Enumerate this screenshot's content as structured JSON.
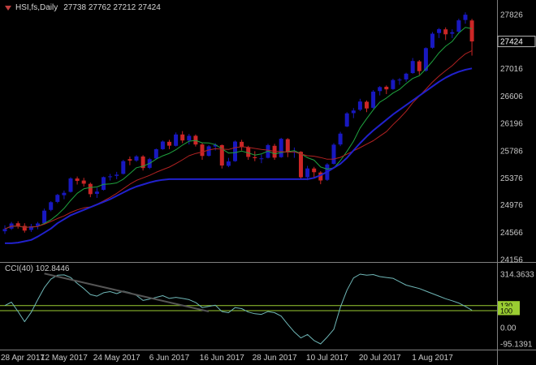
{
  "header": {
    "symbol": "HSI,fs,Daily",
    "ohlc": "27738 27762 27212 27424"
  },
  "colors": {
    "background": "#000000",
    "bull": "#1818C0",
    "bear": "#CC2626",
    "ma_fast": "#1FA33F",
    "ma_slow": "#B22222",
    "step_line": "#2121CC",
    "cci_line": "#6FB7B7",
    "level_line": "#9ACD32",
    "axis_text": "#C8C8C8",
    "trendline": "#555555",
    "separator": "#808080",
    "price_tag_text": "#FFFFFF"
  },
  "chart_data": {
    "type": "candlestick",
    "symbol": "HSI,fs,Daily",
    "timeframe": "Daily",
    "last_bar_ohlc": {
      "open": 27738,
      "high": 27762,
      "low": 27212,
      "close": 27424
    },
    "price_axis": {
      "max": 27826,
      "min": 24156,
      "current_price": 27424,
      "gridlines": [
        27826,
        27416,
        27016,
        26606,
        26196,
        25786,
        25376,
        24976,
        24566,
        24156
      ]
    },
    "x_axis": {
      "labels": [
        {
          "bar": 0,
          "label": "28 Apr 2017"
        },
        {
          "bar": 9,
          "label": "12 May 2017"
        },
        {
          "bar": 17,
          "label": "24 May 2017"
        },
        {
          "bar": 25,
          "label": "6 Jun 2017"
        },
        {
          "bar": 33,
          "label": "16 Jun 2017"
        },
        {
          "bar": 41,
          "label": "28 Jun 2017"
        },
        {
          "bar": 49,
          "label": "10 Jul 2017"
        },
        {
          "bar": 57,
          "label": "20 Jul 2017"
        },
        {
          "bar": 65,
          "label": "1 Aug 2017"
        }
      ]
    },
    "bars": [
      [
        24580,
        24670,
        24540,
        24615
      ],
      [
        24620,
        24720,
        24600,
        24696
      ],
      [
        24700,
        24730,
        24620,
        24660
      ],
      [
        24660,
        24700,
        24560,
        24590
      ],
      [
        24600,
        24690,
        24570,
        24655
      ],
      [
        24660,
        24720,
        24610,
        24697
      ],
      [
        24700,
        24920,
        24690,
        24889
      ],
      [
        24900,
        25030,
        24880,
        25015
      ],
      [
        25020,
        25140,
        25000,
        25125
      ],
      [
        25120,
        25190,
        25060,
        25156
      ],
      [
        25170,
        25390,
        25160,
        25371
      ],
      [
        25370,
        25400,
        25280,
        25335
      ],
      [
        25340,
        25380,
        25250,
        25293
      ],
      [
        25290,
        25310,
        25090,
        25136
      ],
      [
        25140,
        25230,
        25080,
        25174
      ],
      [
        25200,
        25400,
        25190,
        25391
      ],
      [
        25390,
        25440,
        25340,
        25403
      ],
      [
        25410,
        25470,
        25360,
        25428
      ],
      [
        25440,
        25650,
        25430,
        25630
      ],
      [
        25660,
        25700,
        25570,
        25639
      ],
      [
        25640,
        25720,
        25620,
        25701
      ],
      [
        25700,
        25720,
        25490,
        25527
      ],
      [
        25530,
        25680,
        25510,
        25660
      ],
      [
        25670,
        25820,
        25660,
        25809
      ],
      [
        25810,
        25940,
        25800,
        25924
      ],
      [
        25920,
        25950,
        25810,
        25862
      ],
      [
        25860,
        26060,
        25850,
        26030
      ],
      [
        26030,
        26080,
        25900,
        25940
      ],
      [
        25940,
        26040,
        25880,
        26010
      ],
      [
        26010,
        26030,
        25850,
        25880
      ],
      [
        25880,
        25900,
        25650,
        25708
      ],
      [
        25710,
        25870,
        25700,
        25852
      ],
      [
        25850,
        25900,
        25790,
        25875
      ],
      [
        25870,
        25880,
        25520,
        25565
      ],
      [
        25560,
        25680,
        25540,
        25626
      ],
      [
        25630,
        25940,
        25620,
        25924
      ],
      [
        25920,
        25950,
        25790,
        25843
      ],
      [
        25840,
        25860,
        25650,
        25694
      ],
      [
        25690,
        25780,
        25630,
        25675
      ],
      [
        25670,
        25730,
        25600,
        25672
      ],
      [
        25680,
        25890,
        25670,
        25871
      ],
      [
        25860,
        25890,
        25650,
        25683
      ],
      [
        25690,
        25980,
        25680,
        25965
      ],
      [
        25960,
        25975,
        25690,
        25764
      ],
      [
        25770,
        25835,
        25680,
        25772
      ],
      [
        25770,
        25780,
        25355,
        25389
      ],
      [
        25390,
        25560,
        25345,
        25521
      ],
      [
        25520,
        25545,
        25375,
        25465
      ],
      [
        25460,
        25480,
        25285,
        25341
      ],
      [
        25350,
        25600,
        25335,
        25581
      ],
      [
        25590,
        25900,
        25580,
        25877
      ],
      [
        25880,
        26070,
        25855,
        26043
      ],
      [
        26150,
        26365,
        26140,
        26346
      ],
      [
        26350,
        26425,
        26275,
        26389
      ],
      [
        26400,
        26565,
        26380,
        26524
      ],
      [
        26520,
        26540,
        26365,
        26420
      ],
      [
        26430,
        26695,
        26415,
        26672
      ],
      [
        26680,
        26755,
        26615,
        26740
      ],
      [
        26745,
        26765,
        26635,
        26706
      ],
      [
        26710,
        26865,
        26700,
        26846
      ],
      [
        26850,
        26875,
        26775,
        26852
      ],
      [
        26855,
        26955,
        26820,
        26941
      ],
      [
        26950,
        27175,
        26940,
        27131
      ],
      [
        27125,
        27145,
        26925,
        26979
      ],
      [
        26985,
        27335,
        26970,
        27324
      ],
      [
        27330,
        27565,
        27315,
        27540
      ],
      [
        27550,
        27625,
        27475,
        27607
      ],
      [
        27605,
        27635,
        27445,
        27531
      ],
      [
        27540,
        27605,
        27475,
        27562
      ],
      [
        27570,
        27765,
        27555,
        27740
      ],
      [
        27745,
        27860,
        27690,
        27824
      ],
      [
        27738,
        27762,
        27212,
        27424
      ]
    ],
    "overlays": {
      "ma_fast_period": 6,
      "ma_slow_period": 14,
      "step_line": [
        24400,
        24400,
        24410,
        24430,
        24450,
        24500,
        24560,
        24620,
        24700,
        24760,
        24820,
        24860,
        24900,
        24940,
        24980,
        25020,
        25060,
        25110,
        25160,
        25210,
        25250,
        25280,
        25310,
        25335,
        25350,
        25360,
        25360,
        25360,
        25360,
        25360,
        25360,
        25360,
        25360,
        25360,
        25360,
        25360,
        25360,
        25360,
        25360,
        25360,
        25360,
        25360,
        25360,
        25360,
        25360,
        25360,
        25360,
        25380,
        25420,
        25470,
        25530,
        25590,
        25680,
        25790,
        25900,
        26000,
        26090,
        26170,
        26250,
        26330,
        26400,
        26470,
        26540,
        26610,
        26680,
        26750,
        26820,
        26880,
        26930,
        26970,
        27000,
        27020
      ]
    },
    "indicator": {
      "name": "CCI(40)",
      "current_value": 102.8446,
      "title": "CCI(40) 102.8446",
      "values": [
        130,
        150,
        95,
        35,
        90,
        165,
        235,
        285,
        308,
        310,
        295,
        260,
        230,
        195,
        185,
        205,
        212,
        200,
        215,
        205,
        190,
        160,
        168,
        178,
        188,
        172,
        178,
        172,
        165,
        148,
        118,
        125,
        132,
        95,
        88,
        118,
        112,
        92,
        82,
        78,
        95,
        88,
        68,
        20,
        -25,
        -60,
        -40,
        -75,
        -95.14,
        -55,
        -10,
        120,
        220,
        292,
        314.36,
        308,
        312,
        300,
        295,
        290,
        270,
        250,
        240,
        230,
        215,
        200,
        185,
        170,
        158,
        145,
        125,
        102.84
      ],
      "levels": [
        {
          "value": 130,
          "label": "130"
        },
        {
          "value": 100,
          "label": "100"
        }
      ],
      "axis_labels": [
        {
          "value": 314.3633,
          "label": "314.3633"
        },
        {
          "value": 0,
          "label": "0.00"
        },
        {
          "value": -95.1391,
          "label": "-95.1391"
        }
      ],
      "trendline": {
        "from_bar": 6,
        "from_value": 318,
        "to_bar": 31,
        "to_value": 95
      }
    }
  }
}
